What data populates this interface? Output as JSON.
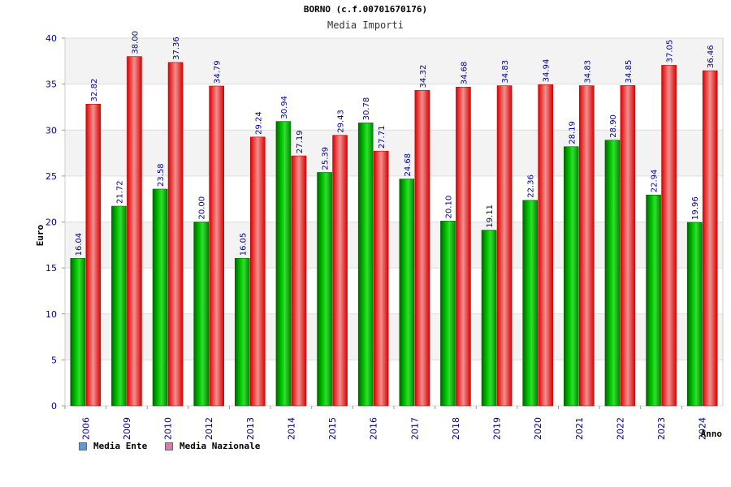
{
  "chart_data": {
    "type": "bar",
    "title": "BORNO (c.f.00701670176)",
    "subtitle": "Media Importi",
    "xlabel": "Anno",
    "ylabel": "Euro",
    "ylim": [
      0,
      40
    ],
    "yticks": [
      "0",
      "5",
      "10",
      "15",
      "20",
      "25",
      "30",
      "35",
      "40"
    ],
    "grid": true,
    "legend_position": "bottom-left",
    "categories": [
      "2006",
      "2009",
      "2010",
      "2012",
      "2013",
      "2014",
      "2015",
      "2016",
      "2017",
      "2018",
      "2019",
      "2020",
      "2021",
      "2022",
      "2023",
      "2024"
    ],
    "series": [
      {
        "name": "Media Ente",
        "color": "#00aa00",
        "legend_color": "#5b9bd5",
        "values": [
          16.04,
          21.72,
          23.58,
          20.0,
          16.05,
          30.94,
          25.39,
          30.78,
          24.68,
          20.1,
          19.11,
          22.36,
          28.19,
          28.9,
          22.94,
          19.96
        ],
        "labels": [
          "16.04",
          "21.72",
          "23.58",
          "20.00",
          "16.05",
          "30.94",
          "25.39",
          "30.78",
          "24.68",
          "20.10",
          "19.11",
          "22.36",
          "28.19",
          "28.90",
          "22.94",
          "19.96"
        ]
      },
      {
        "name": "Media Nazionale",
        "color": "#ee0000",
        "legend_color": "#d57fa8",
        "values": [
          32.82,
          38.0,
          37.36,
          34.79,
          29.24,
          27.19,
          29.43,
          27.71,
          34.32,
          34.68,
          34.83,
          34.94,
          34.83,
          34.85,
          37.05,
          36.46
        ],
        "labels": [
          "32.82",
          "38.00",
          "37.36",
          "34.79",
          "29.24",
          "27.19",
          "29.43",
          "27.71",
          "34.32",
          "34.68",
          "34.83",
          "34.94",
          "34.83",
          "34.85",
          "37.05",
          "36.46"
        ]
      }
    ]
  }
}
